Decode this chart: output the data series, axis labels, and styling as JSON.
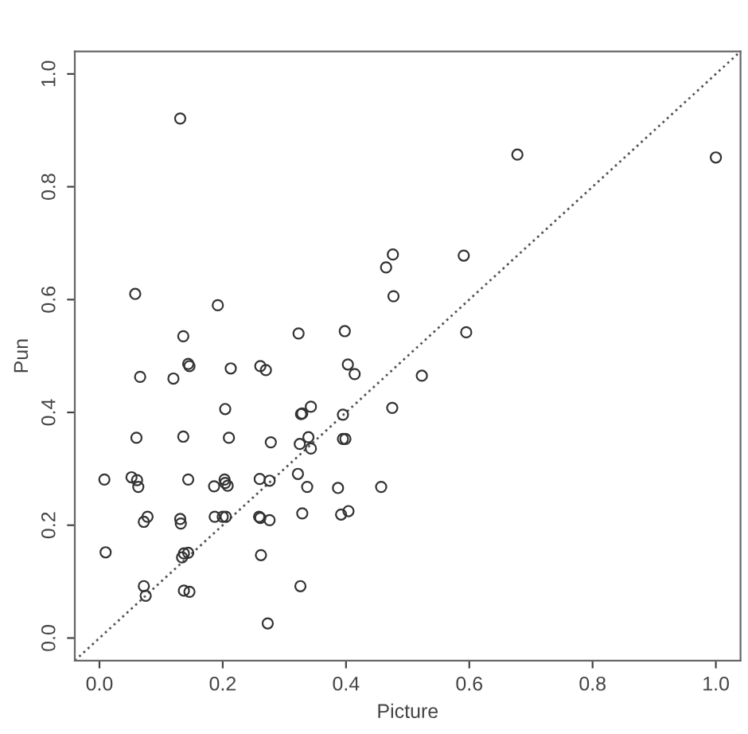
{
  "chart_data": {
    "type": "scatter",
    "xlabel": "Picture",
    "ylabel": "Pun",
    "xlim": [
      -0.04,
      1.04
    ],
    "ylim": [
      -0.04,
      1.04
    ],
    "xticks": [
      {
        "value": 0,
        "label": "0.0"
      },
      {
        "value": 0.2,
        "label": "0.2"
      },
      {
        "value": 0.4,
        "label": "0.4"
      },
      {
        "value": 0.6,
        "label": "0.6"
      },
      {
        "value": 0.8,
        "label": "0.8"
      },
      {
        "value": 1,
        "label": "1.0"
      }
    ],
    "yticks": [
      {
        "value": 0,
        "label": "0.0"
      },
      {
        "value": 0.2,
        "label": "0.2"
      },
      {
        "value": 0.4,
        "label": "0.4"
      },
      {
        "value": 0.6,
        "label": "0.6"
      },
      {
        "value": 0.8,
        "label": "0.8"
      },
      {
        "value": 1,
        "label": "1.0"
      }
    ],
    "grid": false,
    "legend": false,
    "marker": "circle",
    "series": [
      {
        "color": "#333333",
        "x": [
          0.131,
          0.678,
          1.0,
          0.058,
          0.192,
          0.136,
          0.323,
          0.144,
          0.146,
          0.066,
          0.12,
          0.213,
          0.261,
          0.27,
          0.204,
          0.327,
          0.06,
          0.136,
          0.21,
          0.278,
          0.325,
          0.008,
          0.052,
          0.061,
          0.063,
          0.144,
          0.186,
          0.203,
          0.204,
          0.208,
          0.26,
          0.276,
          0.322,
          0.337,
          0.072,
          0.078,
          0.131,
          0.132,
          0.187,
          0.2,
          0.205,
          0.259,
          0.261,
          0.276,
          0.329,
          0.01,
          0.134,
          0.137,
          0.144,
          0.262,
          0.326,
          0.072,
          0.075,
          0.137,
          0.146,
          0.273,
          0.476,
          0.591,
          0.465,
          0.477,
          0.398,
          0.595,
          0.403,
          0.414,
          0.523,
          0.343,
          0.329,
          0.395,
          0.475,
          0.339,
          0.343,
          0.395,
          0.399,
          0.387,
          0.457,
          0.392,
          0.404
        ],
        "values": [
          0.921,
          0.857,
          0.852,
          0.61,
          0.59,
          0.535,
          0.54,
          0.486,
          0.482,
          0.463,
          0.46,
          0.478,
          0.482,
          0.475,
          0.406,
          0.397,
          0.355,
          0.357,
          0.355,
          0.347,
          0.344,
          0.281,
          0.285,
          0.28,
          0.268,
          0.281,
          0.269,
          0.281,
          0.275,
          0.27,
          0.282,
          0.279,
          0.291,
          0.268,
          0.206,
          0.215,
          0.211,
          0.203,
          0.215,
          0.215,
          0.215,
          0.215,
          0.213,
          0.209,
          0.221,
          0.152,
          0.143,
          0.15,
          0.151,
          0.147,
          0.092,
          0.092,
          0.075,
          0.084,
          0.082,
          0.026,
          0.68,
          0.678,
          0.657,
          0.606,
          0.544,
          0.542,
          0.485,
          0.468,
          0.465,
          0.41,
          0.398,
          0.396,
          0.408,
          0.356,
          0.336,
          0.353,
          0.353,
          0.266,
          0.268,
          0.219,
          0.225
        ]
      },
      {
        "type": "line",
        "color": "#555555",
        "line_style": "dotted",
        "marker": "none",
        "x": [
          -0.04,
          1.04
        ],
        "values": [
          -0.04,
          1.04
        ]
      }
    ]
  }
}
